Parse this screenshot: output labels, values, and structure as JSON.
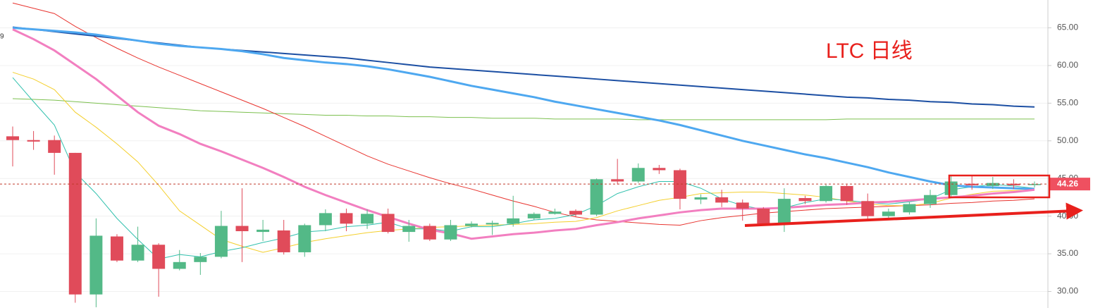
{
  "chart_data": {
    "type": "candlestick",
    "annotation": "LTC 日线",
    "corner_text": "9",
    "up_color": "#53b987",
    "down_color": "#e04b5a",
    "open": [
      50.6,
      50.1,
      50.1,
      48.4,
      29.6,
      37.3,
      34.1,
      36.2,
      33.0,
      33.9,
      34.6,
      38.7,
      37.9,
      38.1,
      35.2,
      38.8,
      40.4,
      39.0,
      40.3,
      37.9,
      38.7,
      36.9,
      38.7,
      38.9,
      39.0,
      39.7,
      40.3,
      40.7,
      40.2,
      44.9,
      44.6,
      46.4,
      46.1,
      42.2,
      42.5,
      41.8,
      41.0,
      39.0,
      42.4,
      42.0,
      44.0,
      42.0,
      40.0,
      40.5,
      41.6,
      42.8,
      44.3,
      44.0,
      44.3,
      44.2
    ],
    "high": [
      51.9,
      51.3,
      50.7,
      48.4,
      39.7,
      37.6,
      38.6,
      36.4,
      35.5,
      35.1,
      40.7,
      43.7,
      39.5,
      39.5,
      39.0,
      40.9,
      41.0,
      40.9,
      41.0,
      39.5,
      39.0,
      39.5,
      39.3,
      39.4,
      42.7,
      40.5,
      41.0,
      40.9,
      45.0,
      47.6,
      47.0,
      46.8,
      46.3,
      42.9,
      43.5,
      42.2,
      41.2,
      43.7,
      42.7,
      44.2,
      44.2,
      43.0,
      41.0,
      41.9,
      43.5,
      45.3,
      45.4,
      45.2,
      44.9,
      44.6
    ],
    "low": [
      46.6,
      48.8,
      45.5,
      28.5,
      27.9,
      33.9,
      33.9,
      29.3,
      32.8,
      32.2,
      34.4,
      33.9,
      36.7,
      34.9,
      34.6,
      38.0,
      38.0,
      38.3,
      37.7,
      36.6,
      36.7,
      36.7,
      38.5,
      37.5,
      38.6,
      39.5,
      40.2,
      39.9,
      40.0,
      44.2,
      44.4,
      45.6,
      40.9,
      41.6,
      41.2,
      39.4,
      38.8,
      37.9,
      41.6,
      41.8,
      41.5,
      39.5,
      39.6,
      40.2,
      41.1,
      42.5,
      43.5,
      43.6,
      43.6,
      43.8
    ],
    "close": [
      50.1,
      49.9,
      48.4,
      29.6,
      37.4,
      34.1,
      36.2,
      33.0,
      33.9,
      34.6,
      38.7,
      38.0,
      38.2,
      35.2,
      38.8,
      40.4,
      39.0,
      40.3,
      37.9,
      38.7,
      36.9,
      38.8,
      39.0,
      39.1,
      39.7,
      40.3,
      40.6,
      40.2,
      44.9,
      44.6,
      46.4,
      46.1,
      42.3,
      42.5,
      41.8,
      41.0,
      39.0,
      42.3,
      42.0,
      44.0,
      42.0,
      40.0,
      40.6,
      41.6,
      42.8,
      44.6,
      44.1,
      44.4,
      44.1,
      44.26
    ],
    "series": [
      {
        "color": "#7cc04f",
        "values": [
          55.6,
          55.5,
          55.4,
          55.2,
          55.0,
          54.8,
          54.6,
          54.4,
          54.2,
          54.0,
          53.9,
          53.8,
          53.7,
          53.6,
          53.5,
          53.4,
          53.4,
          53.3,
          53.3,
          53.2,
          53.2,
          53.1,
          53.1,
          53.0,
          53.0,
          53.0,
          52.9,
          52.9,
          52.9,
          52.9,
          52.8,
          52.8,
          52.8,
          52.8,
          52.8,
          52.8,
          52.8,
          52.8,
          52.8,
          52.8,
          52.9,
          52.9,
          52.9,
          52.9,
          52.9,
          52.9,
          52.9,
          52.9,
          52.9,
          52.9
        ]
      },
      {
        "color": "#e8342f",
        "values": [
          68.3,
          67.6,
          66.9,
          65.2,
          63.7,
          62.3,
          61.0,
          59.8,
          58.7,
          57.6,
          56.5,
          55.4,
          54.3,
          53.1,
          51.9,
          50.6,
          49.3,
          48.0,
          46.9,
          46.0,
          45.1,
          44.3,
          43.6,
          42.8,
          42.0,
          41.3,
          40.5,
          39.9,
          39.5,
          39.3,
          39.1,
          38.9,
          38.8,
          39.4,
          39.8,
          40.1,
          40.4,
          40.6,
          40.8,
          41.0,
          41.1,
          41.2,
          41.3,
          41.4,
          41.5,
          41.7,
          41.8,
          42.0,
          42.1,
          42.3
        ]
      },
      {
        "color": "#f4cf2c",
        "values": [
          59.1,
          58.2,
          56.8,
          53.8,
          51.8,
          49.6,
          47.2,
          44.1,
          40.7,
          38.8,
          36.9,
          36.0,
          35.2,
          35.8,
          36.5,
          37.0,
          37.4,
          37.8,
          38.1,
          38.3,
          38.5,
          38.6,
          38.7,
          38.8,
          38.9,
          39.0,
          39.2,
          39.3,
          39.8,
          40.7,
          41.4,
          42.1,
          42.5,
          43.0,
          43.1,
          43.2,
          43.2,
          43.0,
          42.8,
          42.5,
          42.0,
          41.6,
          41.4,
          41.4,
          41.7,
          42.4,
          42.9,
          43.3,
          43.4,
          43.5
        ]
      },
      {
        "color": "#32c1ae",
        "values": [
          58.4,
          55.2,
          52.1,
          45.8,
          43.0,
          39.7,
          36.9,
          34.3,
          34.9,
          34.6,
          35.3,
          35.8,
          36.5,
          37.1,
          37.9,
          38.1,
          38.6,
          38.8,
          39.2,
          38.3,
          38.3,
          38.0,
          38.6,
          38.6,
          39.0,
          39.5,
          39.7,
          40.2,
          41.4,
          43.0,
          43.9,
          44.6,
          44.6,
          43.7,
          42.3,
          41.4,
          40.9,
          41.1,
          41.8,
          42.3,
          42.1,
          41.8,
          41.6,
          41.9,
          42.3,
          43.5,
          43.9,
          44.2,
          44.0,
          43.7
        ]
      },
      {
        "color": "#1c4fa3",
        "values": [
          65.1,
          64.8,
          64.5,
          64.2,
          63.9,
          63.6,
          63.3,
          63.0,
          62.7,
          62.4,
          62.2,
          62.0,
          61.8,
          61.6,
          61.4,
          61.2,
          61.0,
          60.7,
          60.4,
          60.1,
          59.8,
          59.6,
          59.4,
          59.2,
          59.0,
          58.8,
          58.6,
          58.4,
          58.2,
          58.0,
          57.8,
          57.6,
          57.4,
          57.2,
          57.0,
          56.8,
          56.6,
          56.4,
          56.2,
          56.0,
          55.8,
          55.7,
          55.5,
          55.4,
          55.2,
          55.1,
          54.9,
          54.8,
          54.6,
          54.5
        ]
      },
      {
        "color": "#4ea8f0",
        "values": [
          65.0,
          64.8,
          64.6,
          64.4,
          64.1,
          63.7,
          63.3,
          62.9,
          62.6,
          62.4,
          62.2,
          61.9,
          61.5,
          61.0,
          60.7,
          60.4,
          60.2,
          59.9,
          59.5,
          59.0,
          58.5,
          57.9,
          57.3,
          56.8,
          56.3,
          55.8,
          55.2,
          54.7,
          54.2,
          53.7,
          53.2,
          52.7,
          52.1,
          51.4,
          50.7,
          50.0,
          49.4,
          48.8,
          48.2,
          47.7,
          47.1,
          46.5,
          45.8,
          45.2,
          44.6,
          44.1,
          43.9,
          43.8,
          43.7,
          43.6
        ]
      },
      {
        "color": "#f27fc0",
        "values": [
          64.8,
          63.5,
          62.0,
          60.1,
          58.2,
          56.0,
          53.8,
          52.0,
          50.9,
          49.6,
          48.6,
          47.5,
          46.4,
          45.2,
          43.9,
          42.8,
          41.8,
          40.8,
          39.9,
          39.0,
          38.2,
          37.7,
          37.0,
          37.3,
          37.6,
          37.8,
          38.1,
          38.3,
          38.8,
          39.2,
          39.7,
          40.1,
          40.5,
          40.8,
          41.0,
          41.0,
          41.0,
          41.1,
          41.3,
          41.5,
          41.6,
          41.8,
          41.9,
          42.1,
          42.3,
          42.5,
          42.7,
          43.0,
          43.2,
          43.5
        ]
      }
    ],
    "last_price": {
      "value": 44.26,
      "label": "44.26"
    },
    "ylim": [
      27.8,
      68.7
    ],
    "yticks": [
      {
        "value": 30,
        "label": "30.00"
      },
      {
        "value": 35,
        "label": "35.00"
      },
      {
        "value": 40,
        "label": "40.00"
      },
      {
        "value": 45,
        "label": "45.00"
      },
      {
        "value": 50,
        "label": "50.00"
      },
      {
        "value": 55,
        "label": "55.00"
      },
      {
        "value": 60,
        "label": "60.00"
      },
      {
        "value": 65,
        "label": "65.00"
      }
    ],
    "grid": true
  }
}
